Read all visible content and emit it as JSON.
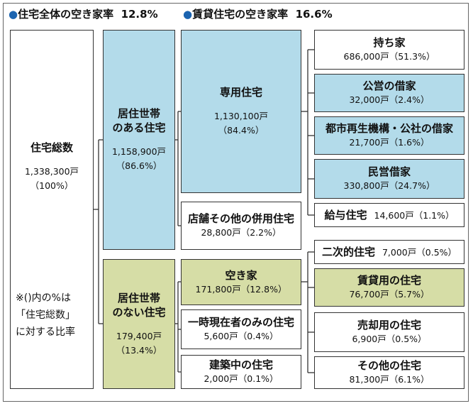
{
  "header": {
    "items": [
      {
        "label": "住宅全体の空き家率",
        "value": "12.8%"
      },
      {
        "label": "賃貸住宅の空き家率",
        "value": "16.6%"
      }
    ]
  },
  "nodes": [
    {
      "label": [
        "住宅総数"
      ],
      "value": "1,338,300戸",
      "percent": "（100%）"
    },
    {
      "label": [
        "居住世帯",
        "のある住宅"
      ],
      "value": "1,158,900戸",
      "percent": "（86.6%）"
    },
    {
      "label": [
        "居住世帯",
        "のない住宅"
      ],
      "value": "179,400戸",
      "percent": "（13.4%）"
    },
    {
      "label": [
        "専用住宅"
      ],
      "value": "1,130,100戸",
      "percent": "（84.4%）"
    },
    {
      "label": [
        "店舗その他の併用住宅"
      ],
      "value": "28,800戸",
      "percent": "（2.2%）"
    },
    {
      "label": [
        "空き家"
      ],
      "value": "171,800戸",
      "percent": "（12.8%）"
    },
    {
      "label": [
        "一時現在者のみの住宅"
      ],
      "value": "5,600戸",
      "percent": "（0.4%）"
    },
    {
      "label": [
        "建築中の住宅"
      ],
      "value": "2,000戸",
      "percent": "（0.1%）"
    },
    {
      "label": [
        "持ち家"
      ],
      "value": "686,000戸",
      "percent": "（51.3%）"
    },
    {
      "label": [
        "公営の借家"
      ],
      "value": "32,000戸",
      "percent": "（2.4%）"
    },
    {
      "label": [
        "都市再生機構・公社の借家"
      ],
      "value": "21,700戸",
      "percent": "（1.6%）"
    },
    {
      "label": [
        "民営借家"
      ],
      "value": "330,800戸",
      "percent": "（24.7%）"
    },
    {
      "label": [
        "給与住宅"
      ],
      "value": "14,600戸",
      "percent": "（1.1%）"
    },
    {
      "label": [
        "二次的住宅"
      ],
      "value": "7,000戸",
      "percent": "（0.5%）"
    },
    {
      "label": [
        "賃貸用の住宅"
      ],
      "value": "76,700戸",
      "percent": "（5.7%）"
    },
    {
      "label": [
        "売却用の住宅"
      ],
      "value": "6,900戸",
      "percent": "（0.5%）"
    },
    {
      "label": [
        "その他の住宅"
      ],
      "value": "81,300戸",
      "percent": "（6.1%）"
    }
  ],
  "note": [
    "※()内の%は",
    "「住宅総数」",
    "に対する比率"
  ]
}
